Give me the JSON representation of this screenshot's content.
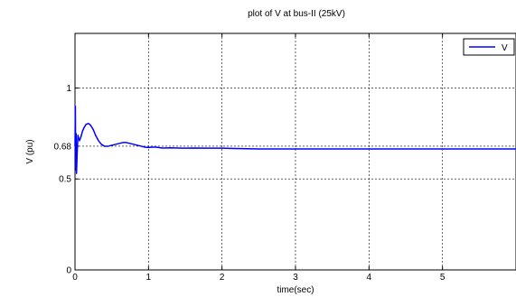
{
  "chart_data": {
    "type": "line",
    "title": "plot of V at bus-II (25kV)",
    "xlabel": "time(sec)",
    "ylabel": "V (pu)",
    "xlim": [
      0,
      6
    ],
    "ylim": [
      0,
      1.3
    ],
    "xticks": [
      {
        "value": 0,
        "label": "0"
      },
      {
        "value": 1,
        "label": "1"
      },
      {
        "value": 2,
        "label": "2"
      },
      {
        "value": 3,
        "label": "3"
      },
      {
        "value": 4,
        "label": "4"
      },
      {
        "value": 5,
        "label": "5"
      }
    ],
    "yticks": [
      {
        "value": 0,
        "label": "0"
      },
      {
        "value": 0.5,
        "label": "0.5"
      },
      {
        "value": 0.68,
        "label": "0.68"
      },
      {
        "value": 1,
        "label": "1"
      }
    ],
    "grid": true,
    "legend_position": "top-right",
    "series": [
      {
        "name": "V",
        "color": "#0000ff",
        "x": [
          0,
          0.005,
          0.01,
          0.015,
          0.02,
          0.03,
          0.04,
          0.06,
          0.08,
          0.1,
          0.12,
          0.15,
          0.18,
          0.2,
          0.22,
          0.25,
          0.28,
          0.32,
          0.36,
          0.4,
          0.45,
          0.5,
          0.55,
          0.6,
          0.65,
          0.7,
          0.75,
          0.8,
          0.85,
          0.9,
          0.95,
          1.0,
          1.05,
          1.1,
          1.15,
          1.2,
          1.3,
          1.4,
          1.5,
          1.6,
          1.8,
          2.0,
          2.5,
          3.0,
          4.0,
          5.0,
          6.0
        ],
        "y": [
          0.68,
          0.9,
          0.55,
          0.75,
          0.53,
          0.65,
          0.74,
          0.71,
          0.73,
          0.76,
          0.78,
          0.8,
          0.805,
          0.8,
          0.79,
          0.77,
          0.74,
          0.71,
          0.69,
          0.68,
          0.68,
          0.685,
          0.69,
          0.695,
          0.7,
          0.7,
          0.695,
          0.69,
          0.685,
          0.68,
          0.675,
          0.673,
          0.675,
          0.675,
          0.672,
          0.67,
          0.671,
          0.67,
          0.669,
          0.67,
          0.669,
          0.669,
          0.665,
          0.665,
          0.665,
          0.665,
          0.665
        ]
      }
    ]
  }
}
